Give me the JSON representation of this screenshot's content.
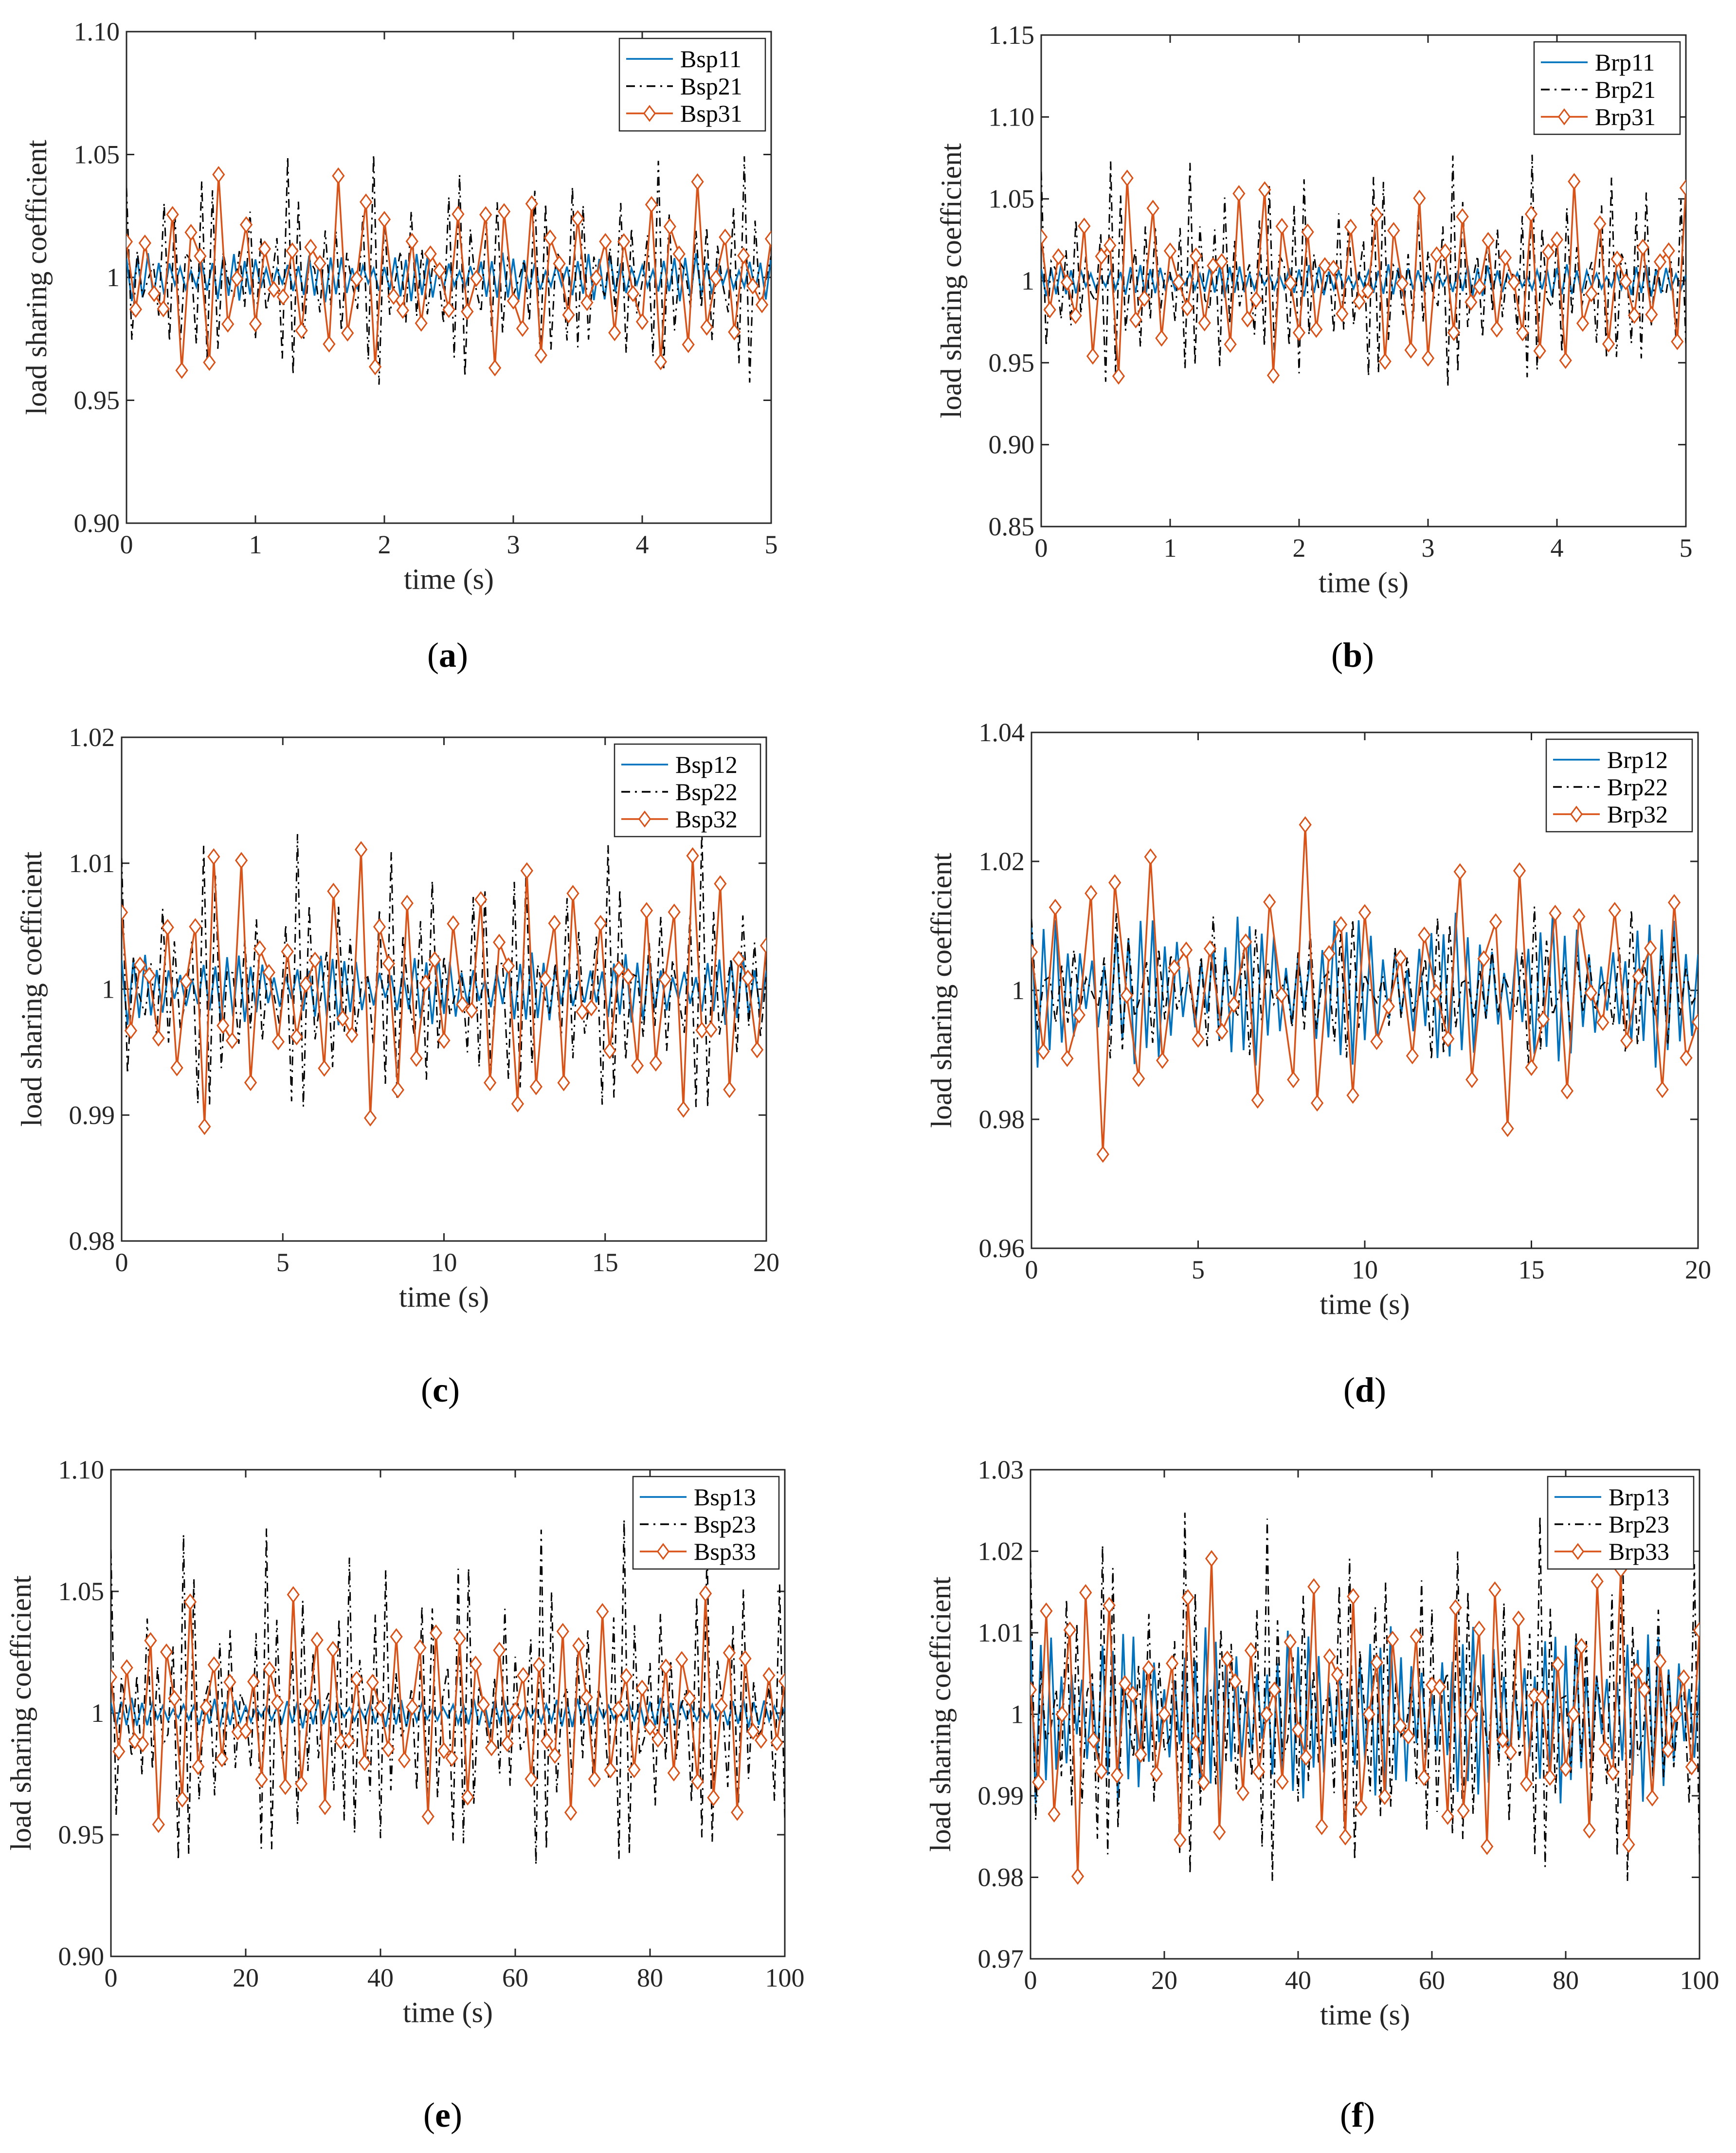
{
  "figure": {
    "colors": {
      "s1": "#0072BD",
      "s2": "#000000",
      "s3": "#D95319",
      "axis": "#262626"
    }
  },
  "chart_data": [
    {
      "panel": "a",
      "caption": "(a)",
      "type": "line",
      "xlabel": "time (s)",
      "ylabel": "load sharing coefficient",
      "xlim": [
        0,
        5
      ],
      "ylim": [
        0.9,
        1.1
      ],
      "xticks": [
        "0",
        "1",
        "2",
        "3",
        "4",
        "5"
      ],
      "yticks": [
        "0.90",
        "0.95",
        "1",
        "1.05",
        "1.10"
      ],
      "ytick_values": [
        0.9,
        0.95,
        1.0,
        1.05,
        1.1
      ],
      "legend": "top-right",
      "series": [
        {
          "name": "Bsp11",
          "style": "solid",
          "amplitude": 0.03,
          "period": 0.22,
          "phase": 0.3,
          "n": 120
        },
        {
          "name": "Bsp21",
          "style": "dashdot",
          "amplitude": 0.045,
          "period": 0.19,
          "phase": 1.6,
          "n": 120
        },
        {
          "name": "Bsp31",
          "style": "diamond",
          "amplitude": 0.04,
          "period": 0.25,
          "phase": 2.4,
          "n": 70
        }
      ]
    },
    {
      "panel": "b",
      "caption": "(b)",
      "type": "line",
      "xlabel": "time (s)",
      "ylabel": "load sharing coefficient",
      "xlim": [
        0,
        5
      ],
      "ylim": [
        0.85,
        1.15
      ],
      "xticks": [
        "0",
        "1",
        "2",
        "3",
        "4",
        "5"
      ],
      "yticks": [
        "0.85",
        "0.90",
        "0.95",
        "1",
        "1.05",
        "1.10",
        "1.15"
      ],
      "ytick_values": [
        0.85,
        0.9,
        0.95,
        1.0,
        1.05,
        1.1,
        1.15
      ],
      "legend": "top-right",
      "series": [
        {
          "name": "Brp11",
          "style": "solid",
          "amplitude": 0.045,
          "period": 0.16,
          "phase": 0.2,
          "n": 130
        },
        {
          "name": "Brp21",
          "style": "dashdot",
          "amplitude": 0.07,
          "period": 0.14,
          "phase": 1.1,
          "n": 130
        },
        {
          "name": "Brp31",
          "style": "diamond",
          "amplitude": 0.06,
          "period": 0.17,
          "phase": 2.2,
          "n": 75
        }
      ]
    },
    {
      "panel": "c",
      "caption": "(c)",
      "type": "line",
      "xlabel": "time (s)",
      "ylabel": "load sharing coefficient",
      "xlim": [
        0,
        20
      ],
      "ylim": [
        0.98,
        1.02
      ],
      "xticks": [
        "0",
        "5",
        "10",
        "15",
        "20"
      ],
      "yticks": [
        "0.98",
        "0.99",
        "1",
        "1.01",
        "1.02"
      ],
      "ytick_values": [
        0.98,
        0.99,
        1.0,
        1.01,
        1.02
      ],
      "legend": "top-right",
      "series": [
        {
          "name": "Bsp12",
          "style": "solid",
          "amplitude": 0.0065,
          "period": 0.75,
          "phase": 0.4,
          "n": 110
        },
        {
          "name": "Bsp22",
          "style": "dashdot",
          "amplitude": 0.011,
          "period": 0.68,
          "phase": 1.3,
          "n": 110
        },
        {
          "name": "Bsp32",
          "style": "diamond",
          "amplitude": 0.011,
          "period": 0.8,
          "phase": 2.0,
          "n": 70
        }
      ]
    },
    {
      "panel": "d",
      "caption": "(d)",
      "type": "line",
      "xlabel": "time (s)",
      "ylabel": "load sharing coefficient",
      "xlim": [
        0,
        20
      ],
      "ylim": [
        0.96,
        1.04
      ],
      "xticks": [
        "0",
        "5",
        "10",
        "15",
        "20"
      ],
      "yticks": [
        "0.96",
        "0.98",
        "1",
        "1.02",
        "1.04"
      ],
      "ytick_values": [
        0.96,
        0.98,
        1.0,
        1.02,
        1.04
      ],
      "legend": "top-right",
      "series": [
        {
          "name": "Brp12",
          "style": "solid",
          "amplitude": 0.022,
          "period": 0.72,
          "phase": 0.5,
          "n": 110
        },
        {
          "name": "Brp22",
          "style": "dashdot",
          "amplitude": 0.012,
          "period": 2.2,
          "phase": 1.0,
          "n": 110
        },
        {
          "name": "Brp32",
          "style": "diamond",
          "amplitude": 0.023,
          "period": 1.45,
          "phase": 2.7,
          "n": 56
        }
      ]
    },
    {
      "panel": "e",
      "caption": "(e)",
      "type": "line",
      "xlabel": "time (s)",
      "ylabel": "load sharing coefficient",
      "xlim": [
        0,
        100
      ],
      "ylim": [
        0.9,
        1.1
      ],
      "xticks": [
        "0",
        "20",
        "40",
        "60",
        "80",
        "100"
      ],
      "yticks": [
        "0.90",
        "0.95",
        "1",
        "1.05",
        "1.10"
      ],
      "ytick_values": [
        0.9,
        0.95,
        1.0,
        1.05,
        1.1
      ],
      "legend": "top-right",
      "series": [
        {
          "name": "Bsp13",
          "style": "solid",
          "amplitude": 0.055,
          "period": 3.6,
          "phase": 0.1,
          "n": 130
        },
        {
          "name": "Bsp23",
          "style": "dashdot",
          "amplitude": 0.07,
          "period": 3.3,
          "phase": 1.2,
          "n": 130
        },
        {
          "name": "Bsp33",
          "style": "diamond",
          "amplitude": 0.045,
          "period": 4.2,
          "phase": 2.5,
          "n": 85
        }
      ]
    },
    {
      "panel": "f",
      "caption": "(f)",
      "type": "line",
      "xlabel": "time (s)",
      "ylabel": "load sharing coefficient",
      "xlim": [
        0,
        100
      ],
      "ylim": [
        0.97,
        1.03
      ],
      "xticks": [
        "0",
        "20",
        "40",
        "60",
        "80",
        "100"
      ],
      "yticks": [
        "0.97",
        "0.98",
        "0.99",
        "1",
        "1.01",
        "1.02",
        "1.03"
      ],
      "ytick_values": [
        0.97,
        0.98,
        0.99,
        1.0,
        1.01,
        1.02,
        1.03
      ],
      "legend": "top-right",
      "series": [
        {
          "name": "Brp13",
          "style": "solid",
          "amplitude": 0.017,
          "period": 3.1,
          "phase": 0.6,
          "n": 130
        },
        {
          "name": "Brp23",
          "style": "dashdot",
          "amplitude": 0.022,
          "period": 2.9,
          "phase": 1.5,
          "n": 130
        },
        {
          "name": "Brp33",
          "style": "diamond",
          "amplitude": 0.018,
          "period": 3.5,
          "phase": 2.9,
          "n": 85
        }
      ]
    }
  ]
}
